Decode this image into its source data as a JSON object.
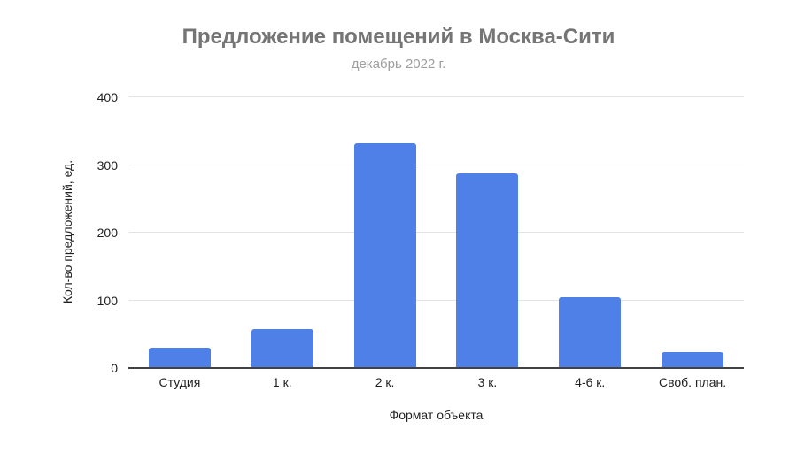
{
  "colors": {
    "bar": "#4e80e8",
    "title": "#757575",
    "subtitle": "#9e9e9e",
    "gridline": "#e3e3e3",
    "axis_line": "#424242",
    "tick_text": "#212121",
    "background": "#ffffff"
  },
  "chart_data": {
    "type": "bar",
    "title": "Предложение помещений в Москва-Сити",
    "subtitle": "декабрь 2022 г.",
    "categories": [
      "Студия",
      "1 к.",
      "2 к.",
      "3 к.",
      "4-6 к.",
      "Своб. план."
    ],
    "values": [
      30,
      57,
      332,
      288,
      104,
      23
    ],
    "xlabel": "Формат объекта",
    "ylabel": "Кол-во предложений, ед.",
    "ylim": [
      0,
      400
    ],
    "yticks": [
      0,
      100,
      200,
      300,
      400
    ],
    "grid": "horizontal",
    "legend": "none",
    "bar_color": "#4e80e8"
  }
}
